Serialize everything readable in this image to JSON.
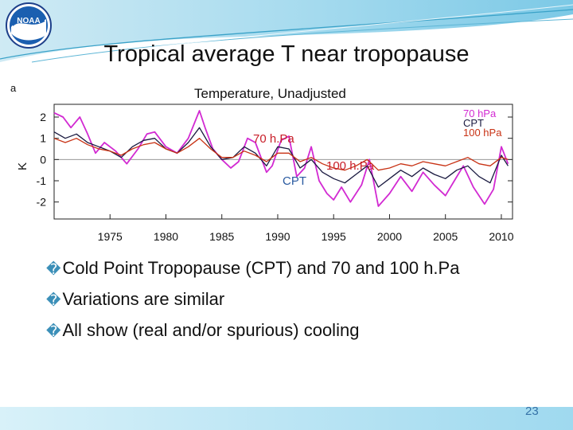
{
  "slide": {
    "title": "Tropical average T near tropopause",
    "panel_letter": "a",
    "bullets": [
      {
        "marker": "�",
        "text": "Cold Point Tropopause (CPT) and 70 and 100 h.Pa"
      },
      {
        "marker": "�",
        "text": "Variations are similar"
      },
      {
        "marker": "�",
        "text": "All show (real and/or spurious) cooling"
      }
    ],
    "page_number": "23",
    "logo_icon": "noaa-logo-icon",
    "logo_text": "NOAA"
  },
  "chart_data": {
    "type": "line",
    "title": "Temperature, Unadjusted",
    "xlabel": "",
    "ylabel": "K",
    "xlim": [
      1970,
      2011
    ],
    "ylim": [
      -2.8,
      2.6
    ],
    "x_ticks": [
      1975,
      1980,
      1985,
      1990,
      1995,
      2000,
      2005,
      2010
    ],
    "y_ticks": [
      2,
      1,
      0,
      -1,
      -2
    ],
    "legend": [
      "70 hPa",
      "CPT",
      "100 hPa"
    ],
    "legend_position": "top-right",
    "annotations": [
      {
        "text": "70 h.Pa",
        "color": "#c81e28"
      },
      {
        "text": "100 h.Pa",
        "color": "#c81e28"
      },
      {
        "text": "CPT",
        "color": "#2a5aa0"
      }
    ],
    "series": [
      {
        "name": "70 hPa",
        "color": "#d22ad2",
        "x": [
          1970,
          1970.8,
          1971.5,
          1972.3,
          1973,
          1973.7,
          1974.5,
          1975.5,
          1976.5,
          1977.5,
          1978.3,
          1979,
          1980,
          1981,
          1982,
          1983,
          1983.5,
          1984.2,
          1985,
          1985.8,
          1986.5,
          1987.3,
          1988,
          1989,
          1989.5,
          1990.3,
          1991,
          1991.7,
          1992.4,
          1993,
          1993.7,
          1994.4,
          1995,
          1995.7,
          1996.5,
          1997.5,
          1998.2,
          1999,
          2000,
          2001,
          2002,
          2003,
          2004,
          2005,
          2005.8,
          2006.6,
          2007.5,
          2008.5,
          2009.3,
          2010,
          2010.6
        ],
        "y": [
          2.2,
          2.0,
          1.5,
          2.0,
          1.2,
          0.3,
          0.8,
          0.4,
          -0.2,
          0.5,
          1.2,
          1.3,
          0.6,
          0.3,
          1.0,
          2.3,
          1.5,
          0.5,
          0.0,
          -0.4,
          -0.1,
          1.0,
          0.8,
          -0.6,
          -0.3,
          0.9,
          1.1,
          -0.8,
          -0.4,
          0.6,
          -1.0,
          -1.6,
          -1.9,
          -1.3,
          -2.0,
          -1.2,
          0.0,
          -2.2,
          -1.6,
          -0.8,
          -1.5,
          -0.6,
          -1.2,
          -1.7,
          -1.0,
          -0.3,
          -1.3,
          -2.1,
          -1.4,
          0.6,
          -0.2
        ]
      },
      {
        "name": "CPT",
        "color": "#1a1a40",
        "x": [
          1970,
          1971,
          1972,
          1973,
          1974,
          1975,
          1976,
          1977,
          1978,
          1979,
          1980,
          1981,
          1982,
          1983,
          1984,
          1985,
          1986,
          1987,
          1988,
          1989,
          1990,
          1991,
          1992,
          1993,
          1994,
          1995,
          1996,
          1997,
          1998,
          1999,
          2000,
          2001,
          2002,
          2003,
          2004,
          2005,
          2006,
          2007,
          2008,
          2009,
          2010,
          2010.6
        ],
        "y": [
          1.3,
          1.0,
          1.2,
          0.8,
          0.6,
          0.4,
          0.1,
          0.6,
          0.9,
          1.0,
          0.5,
          0.3,
          0.8,
          1.5,
          0.6,
          0.0,
          0.1,
          0.6,
          0.3,
          -0.3,
          0.6,
          0.5,
          -0.4,
          0.0,
          -0.6,
          -0.9,
          -1.1,
          -0.7,
          -0.3,
          -1.3,
          -0.9,
          -0.5,
          -0.8,
          -0.4,
          -0.7,
          -0.9,
          -0.5,
          -0.3,
          -0.8,
          -1.1,
          0.2,
          -0.3
        ]
      },
      {
        "name": "100 hPa",
        "color": "#c83214",
        "x": [
          1970,
          1971,
          1972,
          1973,
          1974,
          1975,
          1976,
          1977,
          1978,
          1979,
          1980,
          1981,
          1982,
          1983,
          1984,
          1985,
          1986,
          1987,
          1988,
          1989,
          1990,
          1991,
          1992,
          1993,
          1994,
          1995,
          1996,
          1997,
          1998,
          1999,
          2000,
          2001,
          2002,
          2003,
          2004,
          2005,
          2006,
          2007,
          2008,
          2009,
          2010,
          2010.6
        ],
        "y": [
          1.0,
          0.8,
          1.0,
          0.7,
          0.5,
          0.4,
          0.2,
          0.5,
          0.7,
          0.8,
          0.5,
          0.3,
          0.6,
          1.0,
          0.5,
          0.1,
          0.1,
          0.4,
          0.2,
          -0.1,
          0.3,
          0.3,
          -0.1,
          0.1,
          -0.2,
          -0.4,
          -0.5,
          -0.3,
          0.0,
          -0.5,
          -0.4,
          -0.2,
          -0.3,
          -0.1,
          -0.2,
          -0.3,
          -0.1,
          0.1,
          -0.2,
          -0.3,
          0.1,
          0.0
        ]
      }
    ]
  }
}
